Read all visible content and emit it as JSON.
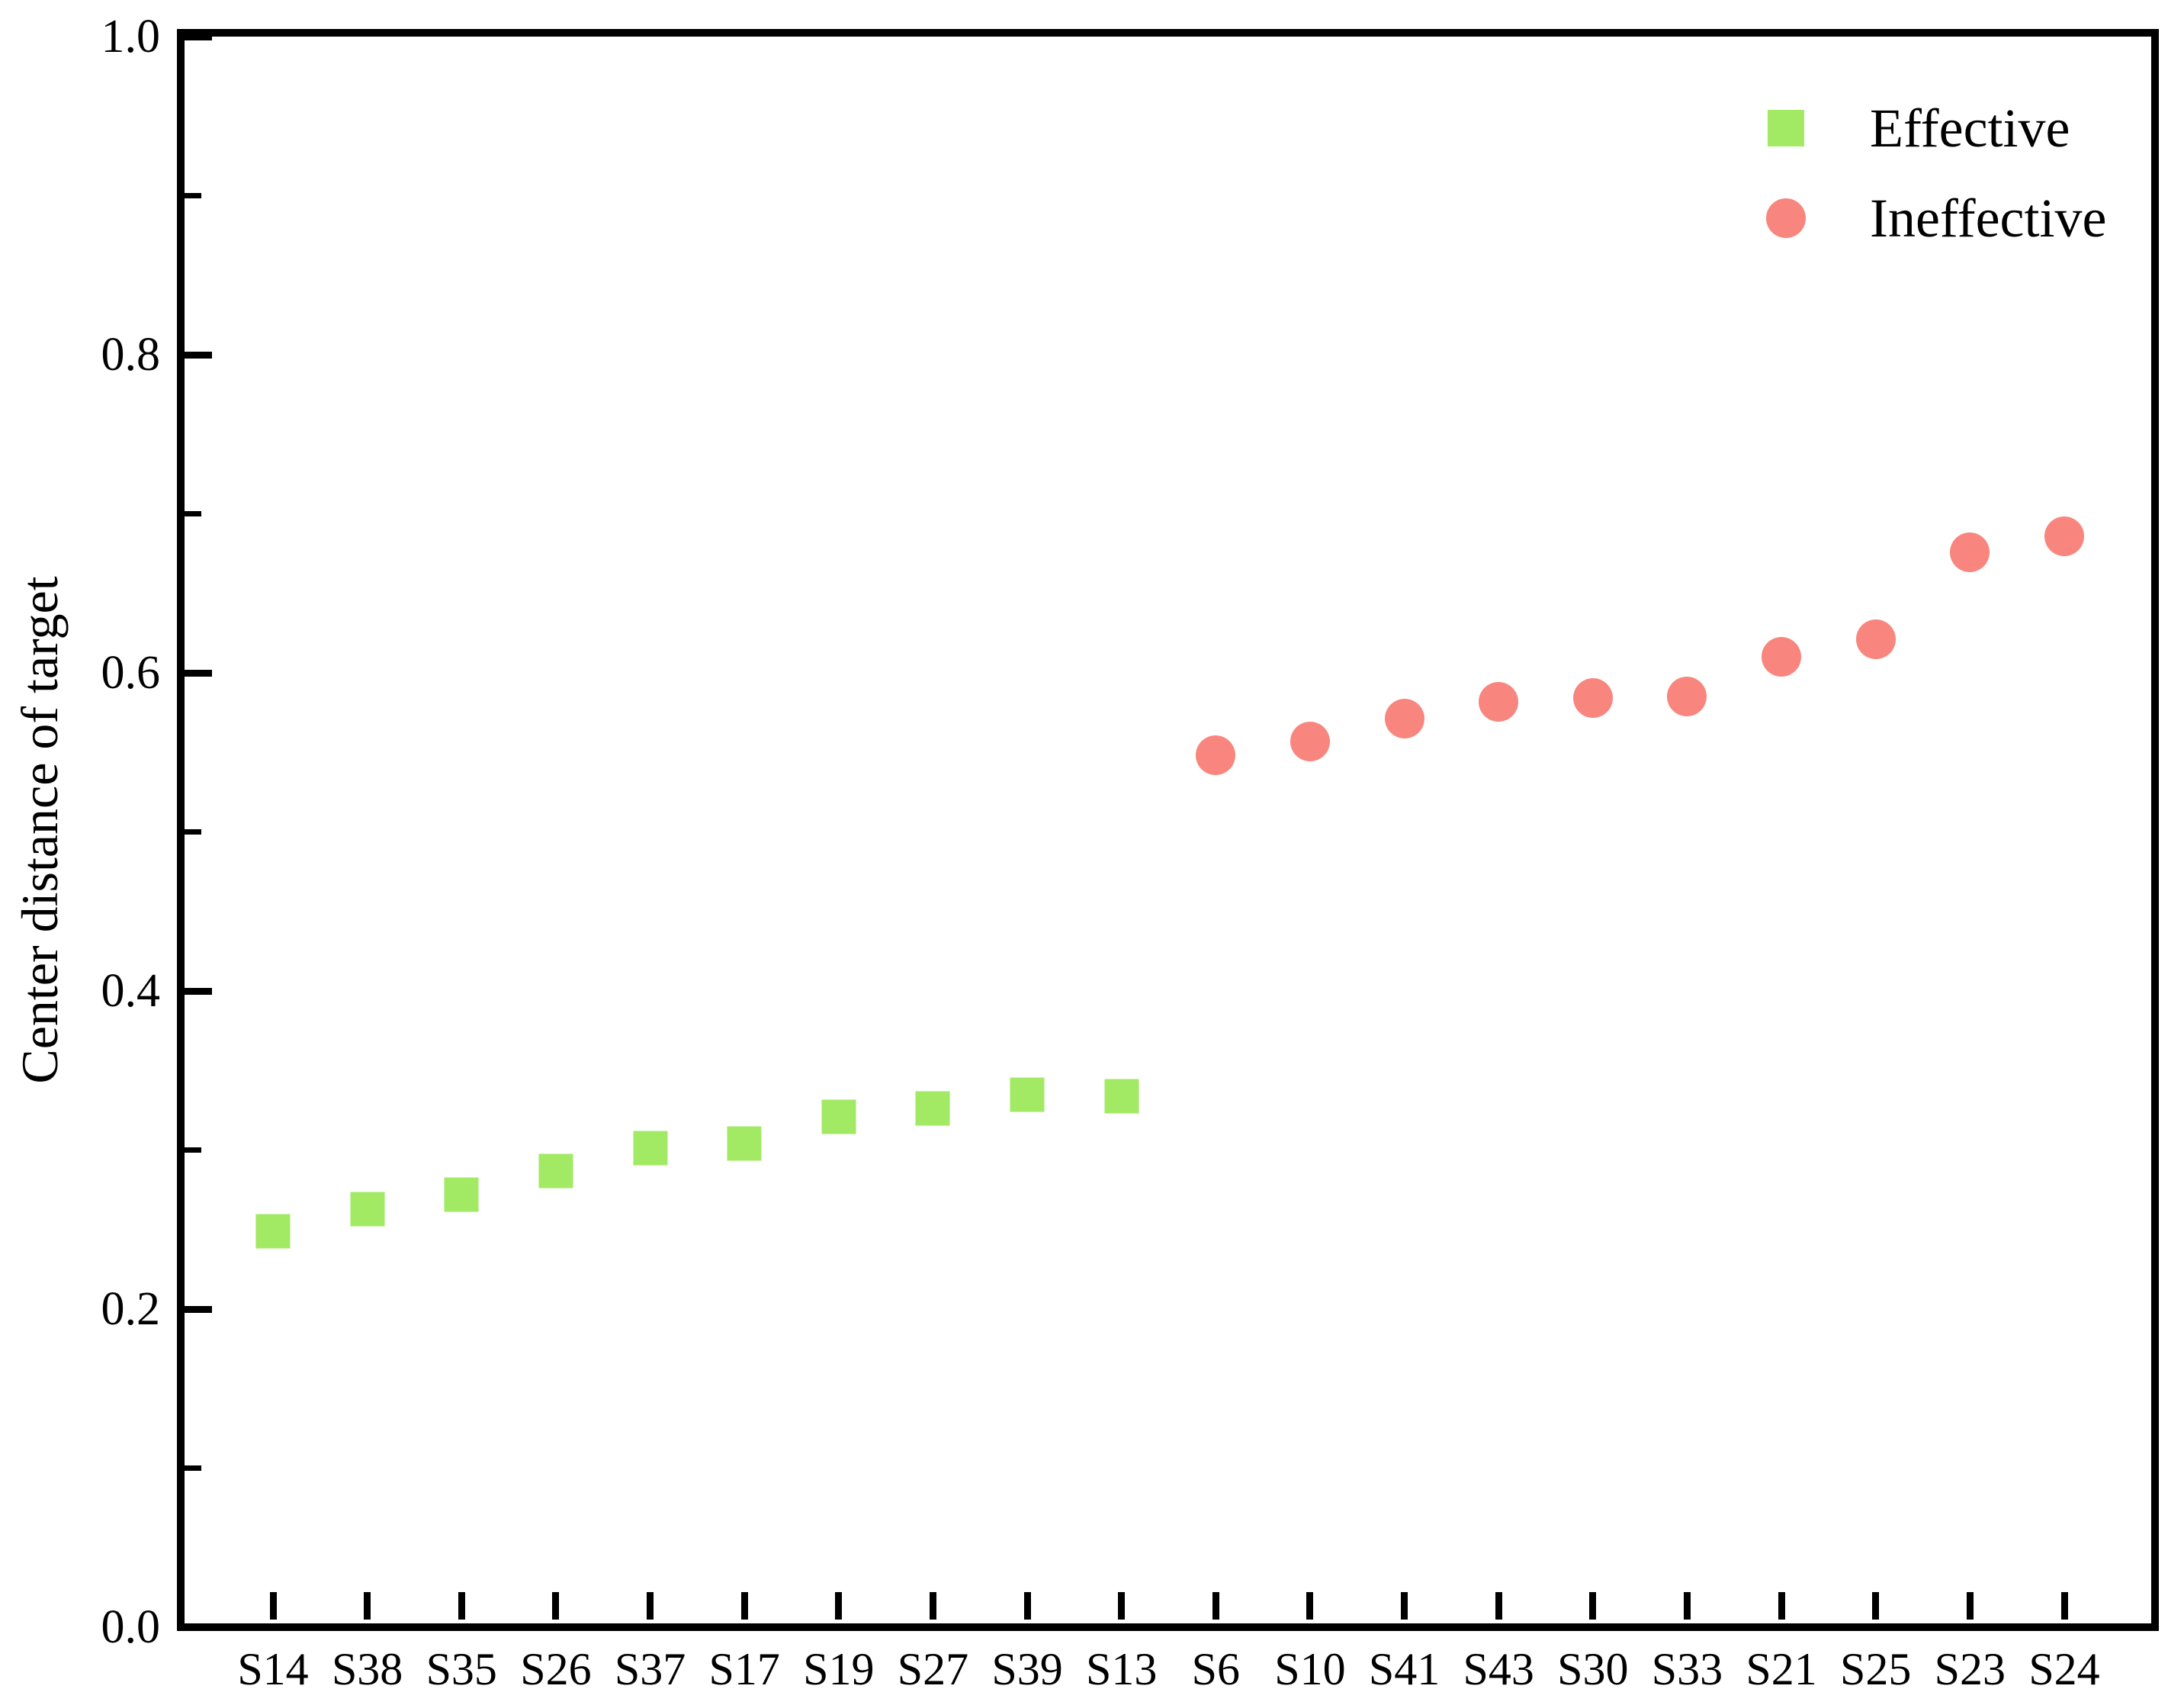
{
  "chart_data": {
    "type": "scatter",
    "title": "",
    "xlabel": "",
    "ylabel": "Center distance of target",
    "ylim": [
      0.0,
      1.0
    ],
    "y_major_tick_step": 0.2,
    "y_minor_tick_step": 0.1,
    "y_tick_labels": [
      "0.0",
      "0.2",
      "0.4",
      "0.6",
      "0.8",
      "1.0"
    ],
    "grid": false,
    "legend_position": "top-right-inside",
    "categories": [
      "S14",
      "S38",
      "S35",
      "S26",
      "S37",
      "S17",
      "S19",
      "S27",
      "S39",
      "S13",
      "S6",
      "S10",
      "S41",
      "S43",
      "S30",
      "S33",
      "S21",
      "S25",
      "S23",
      "S24"
    ],
    "series": [
      {
        "name": "Effective",
        "marker": "square",
        "color": "#a2e964",
        "categories": [
          "S14",
          "S38",
          "S35",
          "S26",
          "S37",
          "S17",
          "S19",
          "S27",
          "S39",
          "S13"
        ],
        "values": [
          0.249,
          0.263,
          0.272,
          0.287,
          0.301,
          0.304,
          0.321,
          0.326,
          0.335,
          0.334
        ]
      },
      {
        "name": "Ineffective",
        "marker": "circle",
        "color": "#f8867e",
        "categories": [
          "S6",
          "S10",
          "S41",
          "S43",
          "S30",
          "S33",
          "S21",
          "S25",
          "S23",
          "S24"
        ],
        "values": [
          0.548,
          0.557,
          0.571,
          0.582,
          0.584,
          0.585,
          0.61,
          0.621,
          0.676,
          0.686
        ]
      }
    ],
    "axis_color": "#000000"
  },
  "legend": {
    "items": [
      {
        "label": "Effective"
      },
      {
        "label": "Ineffective"
      }
    ]
  }
}
